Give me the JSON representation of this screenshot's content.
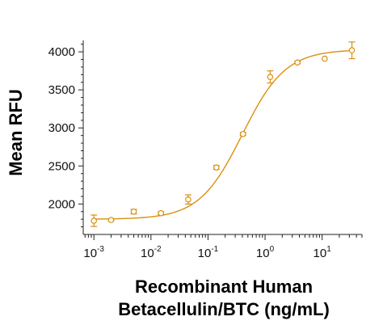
{
  "chart_data": {
    "type": "scatter",
    "title": "",
    "xlabel_lines": [
      "Recombinant Human",
      "Betacellulin/BTC (ng/mL)"
    ],
    "ylabel": "Mean RFU",
    "x_scale": "log10",
    "xlim": [
      0.00065,
      50
    ],
    "ylim": [
      1600,
      4150
    ],
    "x_ticks": [
      {
        "base": "10",
        "exp": "-3",
        "value": 0.001
      },
      {
        "base": "10",
        "exp": "-2",
        "value": 0.01
      },
      {
        "base": "10",
        "exp": "-1",
        "value": 0.1
      },
      {
        "base": "10",
        "exp": "0",
        "value": 1
      },
      {
        "base": "10",
        "exp": "1",
        "value": 10
      }
    ],
    "y_ticks": [
      {
        "label": "2000",
        "value": 2000
      },
      {
        "label": "2500",
        "value": 2500
      },
      {
        "label": "3000",
        "value": 3000
      },
      {
        "label": "3500",
        "value": 3500
      },
      {
        "label": "4000",
        "value": 4000
      }
    ],
    "color": "#d9900f",
    "points": [
      {
        "x": 0.001,
        "y": 1780,
        "err": 75
      },
      {
        "x": 0.002,
        "y": 1790,
        "err": 15
      },
      {
        "x": 0.005,
        "y": 1900,
        "err": 30
      },
      {
        "x": 0.015,
        "y": 1880,
        "err": 20
      },
      {
        "x": 0.045,
        "y": 2060,
        "err": 60
      },
      {
        "x": 0.14,
        "y": 2480,
        "err": 25
      },
      {
        "x": 0.41,
        "y": 2920,
        "err": 20
      },
      {
        "x": 1.23,
        "y": 3670,
        "err": 80
      },
      {
        "x": 3.7,
        "y": 3860,
        "err": 15
      },
      {
        "x": 11.1,
        "y": 3910,
        "err": 0
      },
      {
        "x": 33.3,
        "y": 4020,
        "err": 110
      }
    ],
    "fit": {
      "bottom": 1800,
      "top": 4030,
      "ec50": 0.4,
      "hill": 1.15
    },
    "grid": false,
    "legend": "none"
  }
}
